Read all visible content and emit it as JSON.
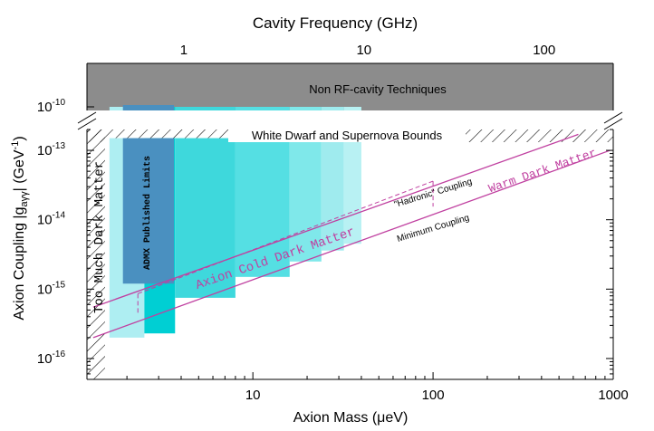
{
  "chart_data": {
    "type": "area",
    "title": "",
    "xlabel": "Axion Mass (μeV)",
    "ylabel": "Axion Coupling |g",
    "ylabel_sub": "aγγ",
    "ylabel_tail": "| (GeV",
    "ylabel_sup": "-1",
    "ylabel_end": ")",
    "top_axis_label": "Cavity Frequency (GHz)",
    "x_scale": "log",
    "y_scale": "log",
    "xlim": [
      1.2,
      1000
    ],
    "ylim_lower": [
      5e-17,
      2e-13
    ],
    "ylim_upper": [
      1e-10,
      1e-10
    ],
    "x_ticks": [
      {
        "value": 10,
        "label": "10"
      },
      {
        "value": 100,
        "label": "100"
      },
      {
        "value": 1000,
        "label": "1000"
      }
    ],
    "top_ticks": [
      {
        "value": 1,
        "label": "1"
      },
      {
        "value": 10,
        "label": "10"
      },
      {
        "value": 100,
        "label": "100"
      }
    ],
    "y_ticks_lower": [
      {
        "exp": -13,
        "label_base": "10",
        "label_exp": "-13"
      },
      {
        "exp": -14,
        "label_base": "10",
        "label_exp": "-14"
      },
      {
        "exp": -15,
        "label_base": "10",
        "label_exp": "-15"
      },
      {
        "exp": -16,
        "label_base": "10",
        "label_exp": "-16"
      }
    ],
    "y_ticks_upper": [
      {
        "exp": -10,
        "label_base": "10",
        "label_exp": "-10"
      }
    ],
    "regions": [
      {
        "name": "Non RF-cavity Techniques",
        "color": "#8c8c8c"
      },
      {
        "name": "White Dwarf and Supernova Bounds",
        "pattern": "hatch"
      },
      {
        "name": "Too Much Dark Matter",
        "pattern": "hatch"
      },
      {
        "name": "ADMX Published Limits",
        "color": "#4a90c0"
      }
    ],
    "series": [
      {
        "name": "Axion Cold Dark Matter",
        "color": "#c040a0"
      },
      {
        "name": "Warm Dark Matter",
        "color": "#c040a0"
      }
    ],
    "annotations": [
      "\"Hadronic\" Coupling",
      "Minimum Coupling"
    ],
    "projected_bands": [
      {
        "x": [
          1.6,
          2.5
        ],
        "y": [
          2e-16,
          1.5e-13
        ],
        "color": "#aeeef2"
      },
      {
        "x": [
          2.5,
          3.7
        ],
        "y": [
          2.3e-16,
          1.5e-13
        ],
        "color": "#00cfd3"
      },
      {
        "x": [
          3.7,
          8.0
        ],
        "y": [
          7.5e-16,
          1.5e-13
        ],
        "color": "#3ed8dc"
      },
      {
        "x": [
          8.0,
          16
        ],
        "y": [
          1.5e-15,
          1.5e-13
        ],
        "color": "#55dfe3"
      },
      {
        "x": [
          16,
          24
        ],
        "y": [
          2.5e-15,
          1.5e-13
        ],
        "color": "#7fe8ea"
      },
      {
        "x": [
          24,
          32
        ],
        "y": [
          3.6e-15,
          1.5e-13
        ],
        "color": "#9febee"
      },
      {
        "x": [
          32,
          40
        ],
        "y": [
          4.5e-15,
          1.5e-13
        ],
        "color": "#b8f1f3"
      }
    ],
    "admx_band": {
      "x": [
        1.9,
        3.65
      ],
      "y": [
        1.2e-15,
        1.5e-13
      ]
    },
    "ksvz_line": {
      "x": [
        1.3,
        640
      ],
      "y": [
        5.5e-16,
        1.7e-13
      ]
    },
    "dfsz_line": {
      "x": [
        1.3,
        960
      ],
      "y": [
        2e-16,
        1e-13
      ]
    },
    "hadronic_line": {
      "x": [
        2.3,
        100
      ],
      "y": [
        8.6e-16,
        3.6e-14
      ]
    },
    "grid": false
  }
}
